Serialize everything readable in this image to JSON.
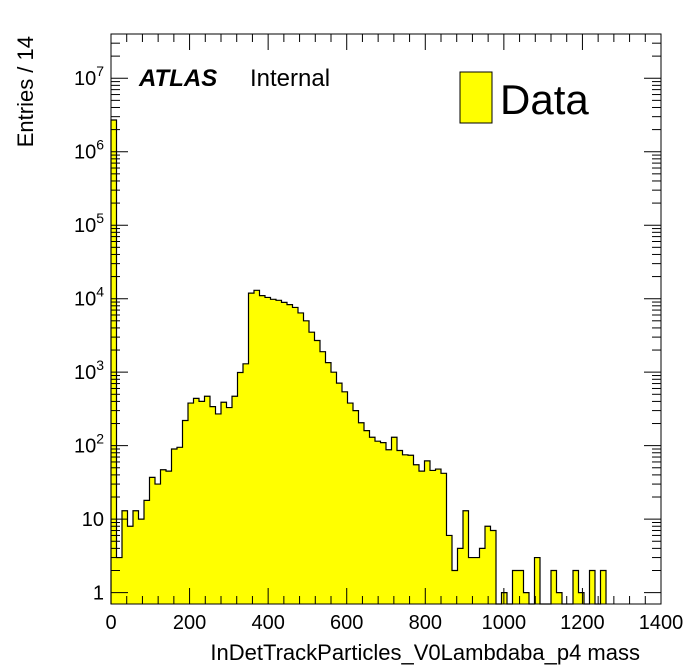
{
  "chart_data": {
    "type": "bar",
    "histogram": true,
    "xlabel": "InDetTrackParticles_V0Lambdaba_p4 mass",
    "ylabel": "Entries / 14",
    "y_scale": "log",
    "xlim": [
      0,
      1400
    ],
    "ylim": [
      0.7,
      40000000
    ],
    "x_ticks": [
      0,
      200,
      400,
      600,
      800,
      1000,
      1200,
      1400
    ],
    "y_ticks": [
      {
        "value": 1,
        "base": "1",
        "exp": ""
      },
      {
        "value": 10,
        "base": "10",
        "exp": ""
      },
      {
        "value": 100,
        "base": "10",
        "exp": "2"
      },
      {
        "value": 1000,
        "base": "10",
        "exp": "3"
      },
      {
        "value": 10000,
        "base": "10",
        "exp": "4"
      },
      {
        "value": 100000,
        "base": "10",
        "exp": "5"
      },
      {
        "value": 1000000,
        "base": "10",
        "exp": "6"
      },
      {
        "value": 10000000,
        "base": "10",
        "exp": "7"
      }
    ],
    "bin_width": 14,
    "bin_start": 0,
    "fill_color": "#ffff00",
    "line_color": "#000000",
    "legend": {
      "label": "Data",
      "position": "top-right"
    },
    "annotation": {
      "bold_italic": "ATLAS",
      "normal": "Internal"
    },
    "values": [
      2700000,
      3,
      13,
      8,
      13,
      10,
      18,
      37,
      30,
      47,
      45,
      90,
      95,
      220,
      380,
      440,
      400,
      470,
      340,
      270,
      390,
      330,
      470,
      990,
      1300,
      11900,
      13000,
      11000,
      10400,
      9800,
      9500,
      8900,
      8300,
      7600,
      6400,
      5000,
      3500,
      2700,
      1900,
      1350,
      1000,
      710,
      540,
      380,
      300,
      205,
      160,
      130,
      115,
      110,
      88,
      130,
      86,
      75,
      74,
      55,
      45,
      62,
      46,
      48,
      42,
      6,
      2,
      4,
      13,
      3,
      3,
      4,
      8,
      7,
      0,
      1,
      0,
      2,
      2,
      1,
      0,
      3,
      0,
      0,
      2,
      1,
      0,
      0,
      2,
      1,
      0,
      2,
      0,
      2
    ]
  }
}
